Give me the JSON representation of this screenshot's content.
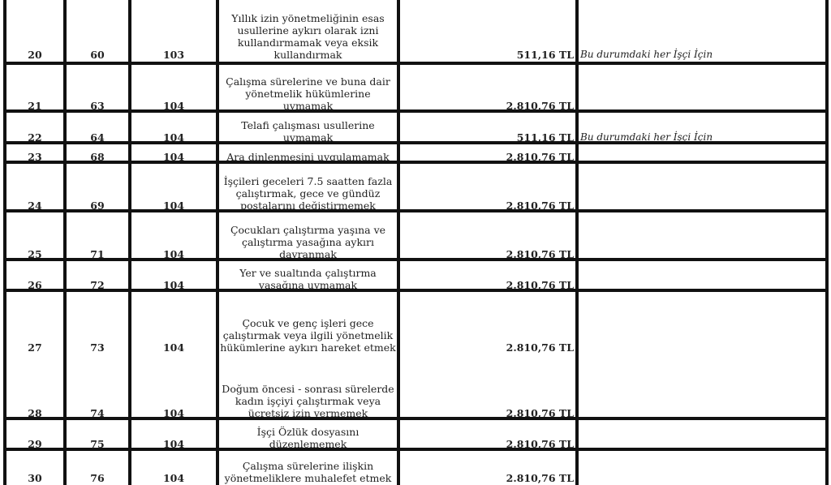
{
  "rows": [
    {
      "no": "20",
      "article": "60",
      "penalty_article": "103",
      "description": "Yıllık izin yönetmeliğinin esas usullerine aykırı olarak izni kullandırmamak veya eksik kullandırmak",
      "amount": "511,16 TL",
      "note": "Bu durumdaki her İşçi İçin"
    },
    {
      "no": "21",
      "article": "63",
      "penalty_article": "104",
      "description": "Çalışma sürelerine ve buna dair yönetmelik hükümlerine uymamak",
      "amount": "2.810,76 TL",
      "note": ""
    },
    {
      "no": "22",
      "article": "64",
      "penalty_article": "104",
      "description": "Telafi çalışması usullerine uymamak",
      "amount": "511,16 TL",
      "note": "Bu durumdaki her İşçi İçin"
    },
    {
      "no": "23",
      "article": "68",
      "penalty_article": "104",
      "description": "Ara dinlenmesini uygulamamak",
      "amount": "2.810,76 TL",
      "note": ""
    },
    {
      "no": "24",
      "article": "69",
      "penalty_article": "104",
      "description": "İşçileri geceleri 7.5 saatten fazla çalıştırmak, gece ve gündüz postalarını değiştirmemek",
      "amount": "2.810,76 TL",
      "note": ""
    },
    {
      "no": "25",
      "article": "71",
      "penalty_article": "104",
      "description": "Çocukları çalıştırma yaşına ve çalıştırma yasağına aykırı davranmak",
      "amount": "2.810,76 TL",
      "note": ""
    },
    {
      "no": "26",
      "article": "72",
      "penalty_article": "104",
      "description": "Yer ve sualtında çalıştırma yasağına uymamak",
      "amount": "2.810,76 TL",
      "note": ""
    },
    {
      "no": "27",
      "article": "73",
      "penalty_article": "104",
      "description": "Çocuk ve genç işleri gece çalıştırmak veya ilgili yönetmelik hükümlerine aykırı hareket etmek",
      "amount": "2.810,76 TL",
      "note": ""
    },
    {
      "no": "28",
      "article": "74",
      "penalty_article": "104",
      "description": "Doğum öncesi - sonrası sürelerde kadın işçiyi çalıştırmak veya ücretsiz izin vermemek",
      "amount": "2.810,76 TL",
      "note": ""
    },
    {
      "no": "29",
      "article": "75",
      "penalty_article": "104",
      "description": "İşçi Özlük dosyasını düzenlememek",
      "amount": "2.810,76 TL",
      "note": ""
    },
    {
      "no": "30",
      "article": "76",
      "penalty_article": "104",
      "description": "Çalışma sürelerine ilişkin yönetmeliklere muhalefet etmek",
      "amount": "2.810,76 TL",
      "note": ""
    }
  ]
}
